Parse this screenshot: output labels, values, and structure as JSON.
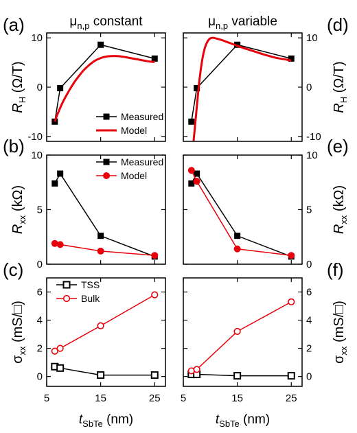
{
  "figure": {
    "column_titles": [
      {
        "base": "μ",
        "sub": "n,p",
        "rest": " constant"
      },
      {
        "base": "μ",
        "sub": "n,p",
        "rest": " variable"
      }
    ],
    "panel_letters": [
      "(a)",
      "(b)",
      "(c)",
      "(d)",
      "(e)",
      "(f)"
    ],
    "x_axis_label": {
      "base": "t",
      "sub": "SbTe",
      "rest": " (nm)"
    },
    "row_ylabels": [
      {
        "base": "R",
        "sub": "H",
        "rest": " (Ω/T)"
      },
      {
        "base": "R",
        "sub": "xx",
        "rest": " (kΩ)"
      },
      {
        "base": "σ",
        "sub": "xx",
        "rest": " (mS/□)"
      }
    ]
  },
  "chart_data": [
    {
      "id": "a",
      "type": "line",
      "xlim": [
        5,
        27
      ],
      "ylim": [
        -11,
        11
      ],
      "xticks": [
        5,
        15,
        25
      ],
      "yticks": [
        -10,
        0,
        10
      ],
      "legend": {
        "placement": "bottom-right"
      },
      "series": [
        {
          "name": "Measured",
          "color": "#000000",
          "marker": "square-filled",
          "x": [
            6.5,
            7.5,
            15.0,
            25.0
          ],
          "y": [
            -7.0,
            -0.2,
            8.6,
            5.8
          ]
        },
        {
          "name": "Model",
          "color": "#e8000b",
          "marker": "none",
          "smooth": true,
          "x": [
            6.5,
            7.0,
            8.0,
            9.0,
            10.0,
            11.0,
            12.0,
            13.0,
            14.0,
            15.0,
            16.0,
            17.0,
            18.0,
            19.0,
            20.0,
            21.0,
            22.0,
            23.0,
            24.0,
            25.0
          ],
          "y": [
            -7.0,
            -5.5,
            -3.0,
            -1.0,
            0.8,
            2.3,
            3.6,
            4.6,
            5.4,
            5.9,
            6.2,
            6.3,
            6.3,
            6.2,
            6.0,
            5.8,
            5.6,
            5.4,
            5.2,
            5.1
          ]
        }
      ]
    },
    {
      "id": "b",
      "type": "line",
      "xlim": [
        5,
        27
      ],
      "ylim": [
        0,
        10
      ],
      "xticks": [
        5,
        15,
        25
      ],
      "yticks": [
        0,
        5,
        10
      ],
      "legend": {
        "placement": "top-right"
      },
      "series": [
        {
          "name": "Measured",
          "color": "#000000",
          "marker": "square-filled",
          "x": [
            6.5,
            7.5,
            15.0,
            25.0
          ],
          "y": [
            7.4,
            8.3,
            2.6,
            0.7
          ]
        },
        {
          "name": "Model",
          "color": "#e8000b",
          "marker": "circle-filled",
          "x": [
            6.5,
            7.5,
            15.0,
            25.0
          ],
          "y": [
            1.9,
            1.8,
            1.2,
            0.8
          ]
        }
      ]
    },
    {
      "id": "c",
      "type": "line",
      "xlim": [
        5,
        27
      ],
      "ylim": [
        -0.7,
        7
      ],
      "xticks": [
        5,
        15,
        25
      ],
      "yticks": [
        0,
        2,
        4,
        6
      ],
      "legend": {
        "placement": "top-left"
      },
      "series": [
        {
          "name": "TSS",
          "color": "#000000",
          "marker": "square-open",
          "x": [
            6.5,
            7.5,
            15.0,
            25.0
          ],
          "y": [
            0.7,
            0.6,
            0.1,
            0.1
          ]
        },
        {
          "name": "Bulk",
          "color": "#e8000b",
          "marker": "circle-open",
          "x": [
            6.5,
            7.5,
            15.0,
            25.0
          ],
          "y": [
            1.8,
            2.0,
            3.6,
            5.8
          ]
        }
      ]
    },
    {
      "id": "d",
      "type": "line",
      "xlim": [
        5,
        27
      ],
      "ylim": [
        -11,
        11
      ],
      "xticks": [
        5,
        15,
        25
      ],
      "yticks": [
        -10,
        0,
        10
      ],
      "series": [
        {
          "color": "#000000",
          "marker": "square-filled",
          "x": [
            6.5,
            7.5,
            15.0,
            25.0
          ],
          "y": [
            -7.0,
            -0.2,
            8.6,
            5.8
          ]
        },
        {
          "color": "#e8000b",
          "marker": "none",
          "smooth": true,
          "x": [
            6.9,
            7.5,
            8.0,
            8.5,
            9.0,
            9.5,
            10.0,
            10.5,
            11.0,
            12.0,
            13.0,
            14.0,
            15.0,
            16.0,
            18.0,
            20.0,
            22.0,
            24.0,
            25.0
          ],
          "y": [
            -11.0,
            -4.0,
            1.5,
            5.5,
            8.0,
            9.3,
            9.9,
            10.0,
            9.9,
            9.6,
            9.2,
            8.8,
            8.4,
            8.0,
            7.3,
            6.6,
            6.0,
            5.6,
            5.4
          ]
        }
      ]
    },
    {
      "id": "e",
      "type": "line",
      "xlim": [
        5,
        27
      ],
      "ylim": [
        0,
        10
      ],
      "xticks": [
        5,
        15,
        25
      ],
      "yticks": [
        0,
        5,
        10
      ],
      "series": [
        {
          "color": "#000000",
          "marker": "square-filled",
          "x": [
            6.5,
            7.5,
            15.0,
            25.0
          ],
          "y": [
            7.4,
            8.3,
            2.6,
            0.7
          ]
        },
        {
          "color": "#e8000b",
          "marker": "circle-filled",
          "x": [
            6.5,
            7.5,
            15.0,
            25.0
          ],
          "y": [
            8.6,
            7.6,
            1.4,
            0.8
          ]
        }
      ]
    },
    {
      "id": "f",
      "type": "line",
      "xlim": [
        5,
        27
      ],
      "ylim": [
        -0.7,
        7
      ],
      "xticks": [
        5,
        15,
        25
      ],
      "yticks": [
        0,
        2,
        4,
        6
      ],
      "series": [
        {
          "color": "#000000",
          "marker": "square-open",
          "x": [
            6.5,
            7.5,
            15.0,
            25.0
          ],
          "y": [
            0.15,
            0.15,
            0.05,
            0.05
          ]
        },
        {
          "color": "#e8000b",
          "marker": "circle-open",
          "x": [
            6.5,
            7.5,
            15.0,
            25.0
          ],
          "y": [
            0.4,
            0.5,
            3.2,
            5.3
          ]
        }
      ]
    }
  ]
}
